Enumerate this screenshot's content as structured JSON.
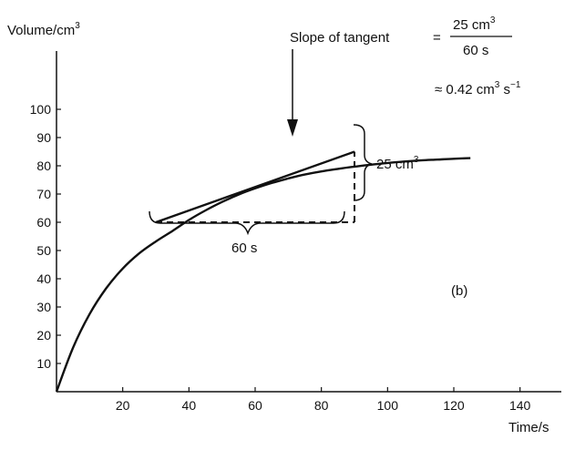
{
  "chart_data": {
    "type": "line",
    "xlabel": "Time/s",
    "ylabel_main": "Volume/cm",
    "ylabel_sup": "3",
    "xlim": [
      0,
      160
    ],
    "ylim": [
      0,
      110
    ],
    "x_ticks": [
      20,
      40,
      60,
      80,
      100,
      120,
      140
    ],
    "y_ticks": [
      10,
      20,
      30,
      40,
      50,
      60,
      70,
      80,
      90,
      100
    ],
    "series": [
      {
        "x": [
          0,
          5,
          10,
          15,
          20,
          25,
          30,
          35,
          40,
          45,
          50,
          55,
          60,
          65,
          70,
          75,
          80,
          85,
          90,
          95,
          100,
          105,
          110,
          115,
          120,
          125
        ],
        "y": [
          0,
          15.6,
          27.5,
          36.6,
          43.6,
          49.0,
          53.2,
          56.9,
          60.8,
          64.2,
          67.2,
          69.8,
          72.0,
          73.9,
          75.5,
          76.9,
          78.0,
          78.9,
          79.7,
          80.4,
          81.0,
          81.5,
          81.9,
          82.2,
          82.5,
          82.7
        ]
      }
    ],
    "tangent": {
      "x": [
        30,
        90
      ],
      "y": [
        60,
        85
      ]
    },
    "run_line": {
      "x": [
        30,
        90
      ],
      "y": [
        60,
        60
      ]
    },
    "rise_line": {
      "x": [
        90,
        90
      ],
      "y": [
        60,
        85
      ]
    },
    "annotations": {
      "slope_text": "Slope of tangent",
      "equals": "=",
      "frac_num_main": "25 cm",
      "frac_num_sup": "3",
      "frac_den": "60 s",
      "approx": "≈ 0.42 cm",
      "approx_sup1": "3",
      "approx_mid": " s",
      "approx_sup2": "−1",
      "rise_label_main": "25 cm",
      "rise_label_sup": "3",
      "run_label": "60 s",
      "panel_label": "(b)"
    }
  }
}
